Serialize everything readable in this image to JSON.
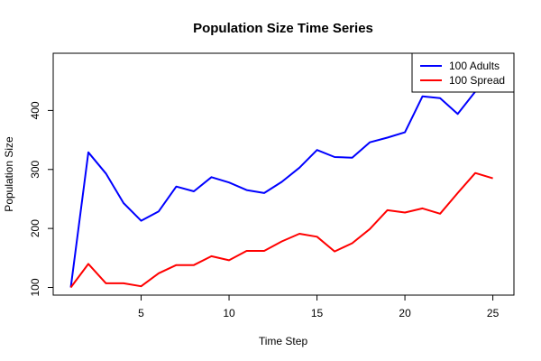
{
  "chart_data": {
    "type": "line",
    "title": "Population Size Time Series",
    "xlabel": "Time Step",
    "ylabel": "Population Size",
    "xlim": [
      0,
      26.2
    ],
    "ylim": [
      87,
      497
    ],
    "x_ticks": [
      5,
      10,
      15,
      20,
      25
    ],
    "y_ticks": [
      100,
      200,
      300,
      400
    ],
    "x": [
      1,
      2,
      3,
      4,
      5,
      6,
      7,
      8,
      9,
      10,
      11,
      12,
      13,
      14,
      15,
      16,
      17,
      18,
      19,
      20,
      21,
      22,
      23,
      24,
      25
    ],
    "series": [
      {
        "name": "100 Adults",
        "color": "#0000ff",
        "values": [
          100,
          329,
          293,
          243,
          213,
          229,
          271,
          263,
          287,
          278,
          265,
          260,
          279,
          303,
          333,
          321,
          320,
          346,
          354,
          363,
          424,
          421,
          394,
          432,
          444
        ]
      },
      {
        "name": "100 Spread",
        "color": "#ff0000",
        "values": [
          100,
          140,
          107,
          107,
          102,
          124,
          138,
          138,
          153,
          146,
          162,
          162,
          178,
          191,
          186,
          161,
          175,
          199,
          231,
          227,
          234,
          225,
          260,
          294,
          285
        ]
      }
    ],
    "legend_position": "top-right",
    "grid": false
  }
}
